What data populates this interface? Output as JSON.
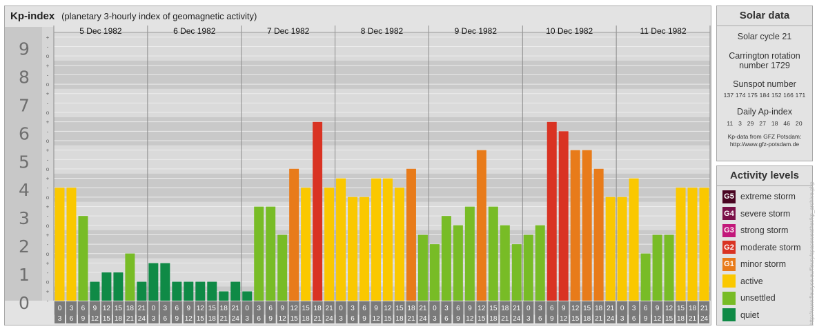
{
  "header": {
    "title": "Kp-index",
    "subtitle": "(planetary 3-hourly index of geomagnetic activity)"
  },
  "chart_data": {
    "type": "bar",
    "ylim": [
      0,
      9
    ],
    "y_ticks": [
      "0",
      "1",
      "2",
      "3",
      "4",
      "5",
      "6",
      "7",
      "8",
      "9"
    ],
    "minor_ticks": [
      "-",
      "+",
      "o"
    ],
    "days": [
      "5 Dec 1982",
      "6 Dec 1982",
      "7 Dec 1982",
      "8 Dec 1982",
      "9 Dec 1982",
      "10 Dec 1982",
      "11 Dec 1982"
    ],
    "interval_top": [
      "0",
      "3",
      "6",
      "9",
      "12",
      "15",
      "18",
      "21"
    ],
    "interval_bottom": [
      "3",
      "6",
      "9",
      "12",
      "15",
      "18",
      "21",
      "24"
    ],
    "values": [
      4.0,
      4.0,
      3.0,
      0.67,
      1.0,
      1.0,
      1.67,
      0.67,
      1.33,
      1.33,
      0.67,
      0.67,
      0.67,
      0.67,
      0.33,
      0.67,
      0.33,
      3.33,
      3.33,
      2.33,
      4.67,
      4.0,
      6.33,
      4.0,
      4.33,
      3.67,
      3.67,
      4.33,
      4.33,
      4.0,
      4.67,
      2.33,
      2.0,
      3.0,
      2.67,
      3.33,
      5.33,
      3.33,
      2.67,
      2.0,
      2.33,
      2.67,
      6.33,
      6.0,
      5.33,
      5.33,
      4.67,
      3.67,
      3.67,
      4.33,
      1.67,
      2.33,
      2.33,
      4.0,
      4.0,
      4.0
    ],
    "colors": {
      "quiet": "#0f8a46",
      "unsettled": "#78bc26",
      "active": "#fac800",
      "minor": "#e87b1a",
      "moderate": "#d93323",
      "strong": "#c2187a",
      "severe": "#7a1048",
      "extreme": "#4a0522"
    }
  },
  "solar": {
    "title": "Solar data",
    "cycle": "Solar cycle 21",
    "carrington_1": "Carrington rotation",
    "carrington_2": "number 1729",
    "sunspot_title": "Sunspot number",
    "sunspot_values": "137 174 175 184 152 166 171",
    "ap_title": "Daily Ap-index",
    "ap_values": "11   3   29   27   18   46   20",
    "credit_1": "Kp-data from GFZ Potsdam:",
    "credit_2": "http://www.gfz-potsdam.de"
  },
  "levels": {
    "title": "Activity levels",
    "items": [
      {
        "badge": "G5",
        "label": "extreme storm",
        "color": "#4a0522"
      },
      {
        "badge": "G4",
        "label": "severe storm",
        "color": "#7a1048"
      },
      {
        "badge": "G3",
        "label": "strong storm",
        "color": "#c2187a"
      },
      {
        "badge": "G2",
        "label": "moderate storm",
        "color": "#d93323"
      },
      {
        "badge": "G1",
        "label": "minor storm",
        "color": "#e87b1a"
      },
      {
        "badge": "",
        "label": "active",
        "color": "#fac800"
      },
      {
        "badge": "",
        "label": "unsettled",
        "color": "#78bc26"
      },
      {
        "badge": "",
        "label": "quiet",
        "color": "#0f8a46"
      }
    ]
  },
  "vertical_credit": "http://www.fleuryce.eu/fleury/spaceweather/kp_archive.php"
}
